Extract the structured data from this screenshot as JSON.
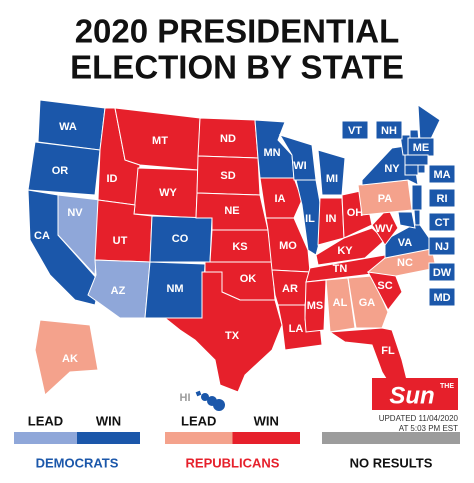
{
  "header": {
    "title_line1": "2020 PRESIDENTIAL",
    "title_line2": "ELECTION BY STATE"
  },
  "colors": {
    "dem_lead": "#8fa7d9",
    "dem_win": "#1b57aa",
    "rep_lead": "#f4a28c",
    "rep_win": "#e6202b",
    "no_results": "#9c9c9c"
  },
  "states": [
    {
      "label": "WA",
      "status": "dem_win"
    },
    {
      "label": "OR",
      "status": "dem_win"
    },
    {
      "label": "CA",
      "status": "dem_win"
    },
    {
      "label": "NV",
      "status": "dem_lead"
    },
    {
      "label": "ID",
      "status": "rep_win"
    },
    {
      "label": "MT",
      "status": "rep_win"
    },
    {
      "label": "WY",
      "status": "rep_win"
    },
    {
      "label": "UT",
      "status": "rep_win"
    },
    {
      "label": "AZ",
      "status": "dem_lead"
    },
    {
      "label": "CO",
      "status": "dem_win"
    },
    {
      "label": "NM",
      "status": "dem_win"
    },
    {
      "label": "ND",
      "status": "rep_win"
    },
    {
      "label": "SD",
      "status": "rep_win"
    },
    {
      "label": "NE",
      "status": "rep_win"
    },
    {
      "label": "KS",
      "status": "rep_win"
    },
    {
      "label": "OK",
      "status": "rep_win"
    },
    {
      "label": "TX",
      "status": "rep_win"
    },
    {
      "label": "MN",
      "status": "dem_win"
    },
    {
      "label": "IA",
      "status": "rep_win"
    },
    {
      "label": "MO",
      "status": "rep_win"
    },
    {
      "label": "AR",
      "status": "rep_win"
    },
    {
      "label": "LA",
      "status": "rep_win"
    },
    {
      "label": "WI",
      "status": "dem_win"
    },
    {
      "label": "IL",
      "status": "dem_win"
    },
    {
      "label": "MI",
      "status": "dem_win"
    },
    {
      "label": "IN",
      "status": "rep_win"
    },
    {
      "label": "OH",
      "status": "rep_win"
    },
    {
      "label": "KY",
      "status": "rep_win"
    },
    {
      "label": "TN",
      "status": "rep_win"
    },
    {
      "label": "MS",
      "status": "rep_win"
    },
    {
      "label": "AL",
      "status": "rep_lead"
    },
    {
      "label": "GA",
      "status": "rep_lead"
    },
    {
      "label": "FL",
      "status": "rep_win"
    },
    {
      "label": "SC",
      "status": "rep_win"
    },
    {
      "label": "NC",
      "status": "rep_lead"
    },
    {
      "label": "VA",
      "status": "dem_win"
    },
    {
      "label": "WV",
      "status": "rep_win"
    },
    {
      "label": "PA",
      "status": "rep_lead"
    },
    {
      "label": "NY",
      "status": "dem_win"
    },
    {
      "label": "NJ",
      "status": "dem_win"
    },
    {
      "label": "MD",
      "status": "dem_win"
    },
    {
      "label": "DW",
      "status": "dem_win"
    },
    {
      "label": "VT",
      "status": "dem_win"
    },
    {
      "label": "NH",
      "status": "dem_win"
    },
    {
      "label": "ME",
      "status": "dem_win"
    },
    {
      "label": "MA",
      "status": "dem_win"
    },
    {
      "label": "CT",
      "status": "dem_win"
    },
    {
      "label": "RI",
      "status": "dem_win"
    },
    {
      "label": "AK",
      "status": "rep_lead"
    },
    {
      "label": "HI",
      "status": "dem_win"
    }
  ],
  "logo": {
    "small": "THE",
    "big": "Sun"
  },
  "updated": {
    "line1": "UPDATED 11/04/2020",
    "line2": "AT 5:03 PM EST"
  },
  "legend": [
    {
      "name": "DEMOCRATS",
      "name_color": "dem_win",
      "items": [
        {
          "label": "LEAD",
          "status": "dem_lead"
        },
        {
          "label": "WIN",
          "status": "dem_win"
        }
      ]
    },
    {
      "name": "REPUBLICANS",
      "name_color": "rep_win",
      "items": [
        {
          "label": "LEAD",
          "status": "rep_lead"
        },
        {
          "label": "WIN",
          "status": "rep_win"
        }
      ]
    },
    {
      "name": "NO RESULTS",
      "name_color": "",
      "items": [
        {
          "label": "",
          "status": "no_results"
        }
      ]
    }
  ]
}
